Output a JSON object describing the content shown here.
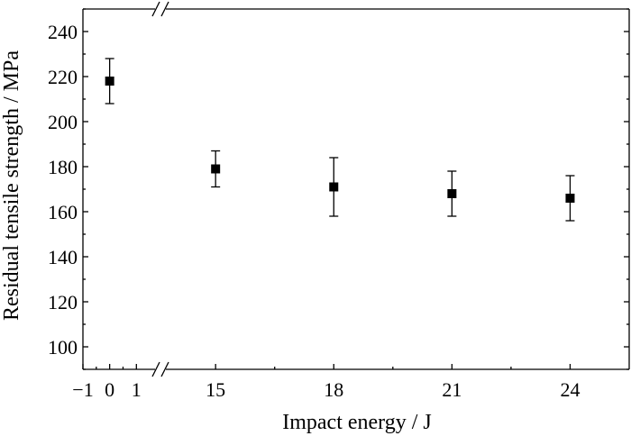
{
  "chart_data": {
    "type": "scatter",
    "title": "",
    "xlabel": "Impact energy / J",
    "ylabel": "Residual tensile strength / MPa",
    "axis_break": {
      "between": [
        1,
        15
      ]
    },
    "x_segments": [
      {
        "range": [
          -1,
          1.9
        ],
        "ticks": [
          -1,
          0,
          1
        ],
        "tick_labels": [
          "−1",
          "0",
          "1"
        ]
      },
      {
        "range": [
          13.6,
          25.5
        ],
        "ticks": [
          15,
          18,
          21,
          24
        ],
        "tick_labels": [
          "15",
          "18",
          "21",
          "24"
        ]
      }
    ],
    "ylim": [
      90,
      250
    ],
    "yticks": [
      100,
      120,
      140,
      160,
      180,
      200,
      220,
      240
    ],
    "ytick_labels": [
      "100",
      "120",
      "140",
      "160",
      "180",
      "200",
      "220",
      "240"
    ],
    "grid": false,
    "marker": "square",
    "color": "#000000",
    "series": [
      {
        "points": [
          {
            "x": 0,
            "y": 218,
            "err_low": 208,
            "err_high": 228
          },
          {
            "x": 15,
            "y": 179,
            "err_low": 171,
            "err_high": 187
          },
          {
            "x": 18,
            "y": 171,
            "err_low": 158,
            "err_high": 184
          },
          {
            "x": 21,
            "y": 168,
            "err_low": 158,
            "err_high": 178
          },
          {
            "x": 24,
            "y": 166,
            "err_low": 156,
            "err_high": 176
          }
        ]
      }
    ]
  }
}
